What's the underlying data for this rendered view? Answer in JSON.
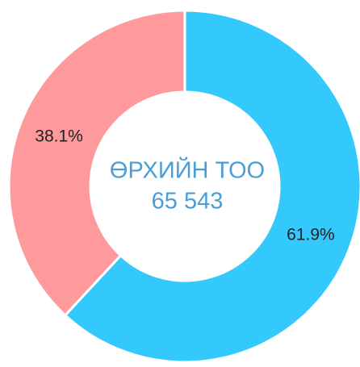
{
  "chart_data": {
    "type": "donut",
    "center_title": "ӨРХИЙН ТОО",
    "center_value": "65 543",
    "values": [
      61.9,
      38.1
    ],
    "value_labels": [
      "61.9%",
      "38.1%"
    ],
    "colors": [
      "#33c9fd",
      "#fe9a9b"
    ]
  }
}
